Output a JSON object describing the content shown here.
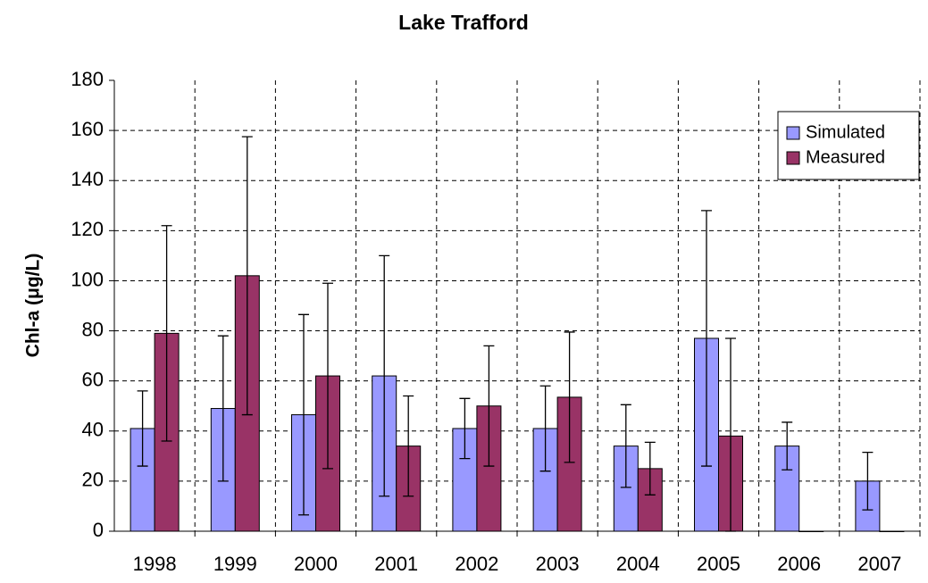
{
  "chart_data": {
    "type": "bar",
    "title": "Lake Trafford",
    "y_label": "Chl-a (μg/L)",
    "categories": [
      "1998",
      "1999",
      "2000",
      "2001",
      "2002",
      "2003",
      "2004",
      "2005",
      "2006",
      "2007"
    ],
    "series": [
      {
        "name": "Simulated",
        "color": "#9999ff",
        "values": [
          41,
          49,
          46.5,
          62,
          41,
          41,
          34,
          77,
          34,
          20
        ],
        "errors": [
          15,
          29,
          40,
          48,
          12,
          17,
          16.5,
          51,
          9.5,
          11.5
        ]
      },
      {
        "name": "Measured",
        "color": "#993366",
        "values": [
          79,
          102,
          62,
          34,
          50,
          53.5,
          25,
          38,
          0,
          0
        ],
        "errors": [
          43,
          55.5,
          37,
          20,
          24,
          26,
          10.5,
          39,
          null,
          null
        ]
      }
    ],
    "ylim": [
      0,
      180
    ],
    "yticks": [
      0,
      20,
      40,
      60,
      80,
      100,
      120,
      140,
      160,
      180
    ],
    "grid": true,
    "legend": "top-right"
  }
}
